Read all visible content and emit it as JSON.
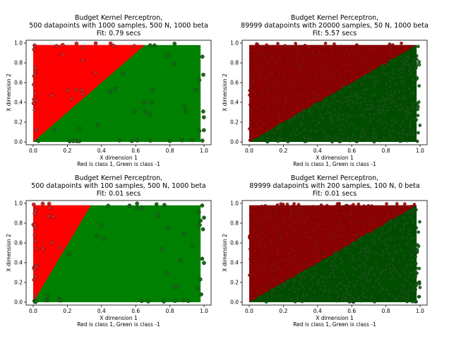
{
  "colors": {
    "red": "#ff0000",
    "green": "#008000",
    "dark_red": "#8b0000",
    "dark_green": "#004d00"
  },
  "chart_data": [
    {
      "type": "scatter",
      "title_lines": [
        "Budget Kernel Perceptron,",
        "500 datapoints with 1000 samples, 500 N, 1000 beta",
        "Fit: 0.79 secs"
      ],
      "xlabel_lines": [
        "X dimension 1",
        "Red is class 1, Green is class -1"
      ],
      "ylabel": "X dimension 2",
      "xlim": [
        0.0,
        1.0
      ],
      "ylim": [
        0.0,
        1.0
      ],
      "xticks": [
        "0.0",
        "0.2",
        "0.4",
        "0.6",
        "0.8",
        "1.0"
      ],
      "yticks": [
        "0.0",
        "0.2",
        "0.4",
        "0.6",
        "0.8",
        "1.0"
      ],
      "region_boundary": {
        "slope": 1.5,
        "upper_class": "red",
        "lower_class": "green"
      },
      "style": "sparse"
    },
    {
      "type": "scatter",
      "title_lines": [
        "Budget Kernel Perceptron,",
        "89999 datapoints with 20000 samples, 50 N, 1000 beta",
        "Fit: 5.57 secs"
      ],
      "xlabel_lines": [
        "X dimension 1",
        "Red is class 1, Green is class -1"
      ],
      "ylabel": "X dimension 2",
      "xlim": [
        0.0,
        1.0
      ],
      "ylim": [
        0.0,
        1.0
      ],
      "xticks": [
        "0.0",
        "0.2",
        "0.4",
        "0.6",
        "0.8",
        "1.0"
      ],
      "yticks": [
        "0.0",
        "0.2",
        "0.4",
        "0.6",
        "0.8",
        "1.0"
      ],
      "region_boundary": {
        "slope": 1.0,
        "upper_class": "red",
        "lower_class": "green"
      },
      "style": "dense"
    },
    {
      "type": "scatter",
      "title_lines": [
        "Budget Kernel Perceptron,",
        "500 datapoints with 100 samples, 500 N, 1000 beta",
        "Fit: 0.01 secs"
      ],
      "xlabel_lines": [
        "X dimension 1",
        "Red is class 1, Green is class -1"
      ],
      "ylabel": "X dimension 2",
      "xlim": [
        0.0,
        1.0
      ],
      "ylim": [
        0.0,
        1.0
      ],
      "xticks": [
        "0.0",
        "0.2",
        "0.4",
        "0.6",
        "0.8",
        "1.0"
      ],
      "yticks": [
        "0.0",
        "0.2",
        "0.4",
        "0.6",
        "0.8",
        "1.0"
      ],
      "region_boundary": {
        "slope": 2.9,
        "upper_class": "red",
        "lower_class": "green"
      },
      "style": "sparse"
    },
    {
      "type": "scatter",
      "title_lines": [
        "Budget Kernel Perceptron,",
        "89999 datapoints with 200 samples, 100 N, 0 beta",
        "Fit: 0.01 secs"
      ],
      "xlabel_lines": [
        "X dimension 1",
        "Red is class 1, Green is class -1"
      ],
      "ylabel": "X dimension 2",
      "xlim": [
        0.0,
        1.0
      ],
      "ylim": [
        0.0,
        1.0
      ],
      "xticks": [
        "0.0",
        "0.2",
        "0.4",
        "0.6",
        "0.8",
        "1.0"
      ],
      "yticks": [
        "0.0",
        "0.2",
        "0.4",
        "0.6",
        "0.8",
        "1.0"
      ],
      "region_boundary": {
        "slope": 1.0,
        "upper_class": "red",
        "lower_class": "green"
      },
      "style": "dense"
    }
  ]
}
